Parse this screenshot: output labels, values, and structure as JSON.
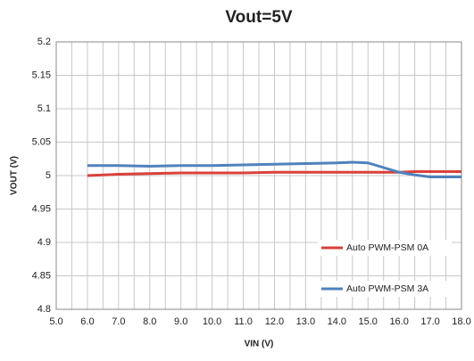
{
  "chart_data": {
    "type": "line",
    "title": "Vout=5V",
    "x_label": "VIN (V)",
    "y_label": "VOUT (V)",
    "x": [
      6,
      7,
      8,
      9,
      10,
      11,
      12,
      13,
      14,
      14.5,
      15,
      15.5,
      16,
      16.5,
      17,
      17.5,
      18
    ],
    "series": [
      {
        "name": "Auto PWM-PSM 0A",
        "color": "#d9413a",
        "values": [
          5.0,
          5.002,
          5.003,
          5.004,
          5.004,
          5.004,
          5.005,
          5.005,
          5.005,
          5.005,
          5.005,
          5.005,
          5.005,
          5.006,
          5.006,
          5.006,
          5.006
        ]
      },
      {
        "name": "Auto PWM-PSM 3A",
        "color": "#4f81bd",
        "values": [
          5.015,
          5.015,
          5.014,
          5.015,
          5.015,
          5.016,
          5.017,
          5.018,
          5.019,
          5.02,
          5.019,
          5.012,
          5.005,
          5.001,
          4.998,
          4.998,
          4.998
        ]
      }
    ],
    "xlim": [
      5,
      18
    ],
    "xticks": [
      {
        "value": 5,
        "label": "5.0"
      },
      {
        "value": 6,
        "label": "6.0"
      },
      {
        "value": 7,
        "label": "7.0"
      },
      {
        "value": 8,
        "label": "8.0"
      },
      {
        "value": 9,
        "label": "9.0"
      },
      {
        "value": 10,
        "label": "10.0"
      },
      {
        "value": 11,
        "label": "11.0"
      },
      {
        "value": 12,
        "label": "12.0"
      },
      {
        "value": 13,
        "label": "13.0"
      },
      {
        "value": 14,
        "label": "14.0"
      },
      {
        "value": 15,
        "label": "15.0"
      },
      {
        "value": 16,
        "label": "16.0"
      },
      {
        "value": 17,
        "label": "17.0"
      },
      {
        "value": 18,
        "label": "18.0"
      }
    ],
    "ylim": [
      4.8,
      5.2
    ],
    "yticks": [
      4.8,
      4.85,
      4.9,
      4.95,
      5,
      5.05,
      5.1,
      5.15,
      5.2
    ],
    "grid": true,
    "legend": "lower right"
  }
}
